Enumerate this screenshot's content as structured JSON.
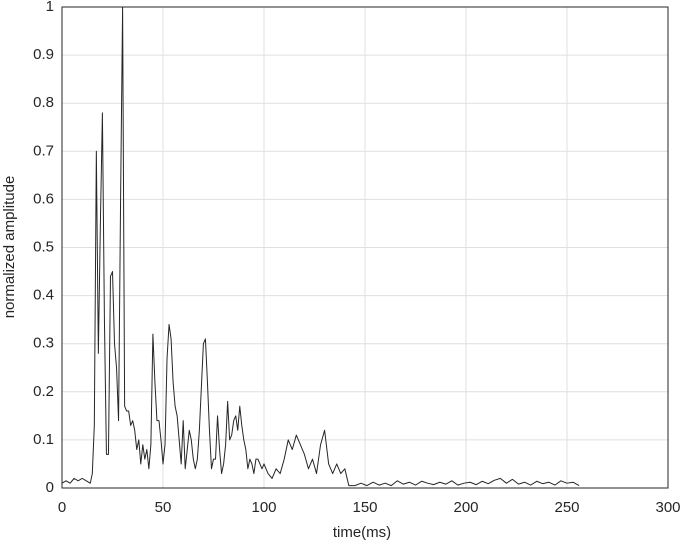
{
  "chart_data": {
    "type": "line",
    "xlabel": "time(ms)",
    "ylabel": "normalized amplitude",
    "x": [
      0,
      2,
      4,
      6,
      8,
      10,
      12,
      14,
      15,
      16,
      17,
      18,
      19,
      20,
      21,
      22,
      23,
      24,
      25,
      26,
      27,
      28,
      29,
      30,
      31,
      32,
      33,
      34,
      35,
      36,
      37,
      38,
      39,
      40,
      41,
      42,
      43,
      44,
      45,
      46,
      47,
      48,
      49,
      50,
      51,
      52,
      53,
      54,
      55,
      56,
      57,
      58,
      59,
      60,
      61,
      62,
      63,
      64,
      65,
      66,
      67,
      68,
      69,
      70,
      71,
      72,
      73,
      74,
      75,
      76,
      77,
      78,
      79,
      80,
      81,
      82,
      83,
      84,
      85,
      86,
      87,
      88,
      89,
      90,
      91,
      92,
      93,
      94,
      95,
      96,
      97,
      98,
      99,
      100,
      102,
      104,
      106,
      108,
      110,
      112,
      114,
      116,
      118,
      120,
      122,
      124,
      126,
      128,
      130,
      132,
      134,
      136,
      138,
      140,
      142,
      145,
      148,
      151,
      154,
      157,
      160,
      163,
      166,
      169,
      172,
      175,
      178,
      181,
      184,
      187,
      190,
      193,
      196,
      199,
      202,
      205,
      208,
      211,
      214,
      217,
      220,
      223,
      226,
      229,
      232,
      235,
      238,
      241,
      244,
      247,
      250,
      253,
      256
    ],
    "values": [
      0.01,
      0.015,
      0.01,
      0.02,
      0.015,
      0.02,
      0.015,
      0.01,
      0.03,
      0.13,
      0.7,
      0.28,
      0.55,
      0.78,
      0.35,
      0.07,
      0.07,
      0.44,
      0.45,
      0.3,
      0.25,
      0.14,
      0.6,
      1.0,
      0.17,
      0.16,
      0.16,
      0.13,
      0.14,
      0.12,
      0.08,
      0.1,
      0.05,
      0.09,
      0.06,
      0.08,
      0.04,
      0.09,
      0.32,
      0.22,
      0.14,
      0.14,
      0.1,
      0.05,
      0.09,
      0.27,
      0.34,
      0.31,
      0.22,
      0.17,
      0.15,
      0.1,
      0.05,
      0.14,
      0.04,
      0.08,
      0.12,
      0.1,
      0.06,
      0.04,
      0.06,
      0.12,
      0.21,
      0.3,
      0.31,
      0.22,
      0.12,
      0.04,
      0.06,
      0.06,
      0.15,
      0.08,
      0.03,
      0.05,
      0.09,
      0.18,
      0.1,
      0.11,
      0.14,
      0.15,
      0.12,
      0.17,
      0.13,
      0.1,
      0.08,
      0.04,
      0.06,
      0.05,
      0.03,
      0.06,
      0.06,
      0.05,
      0.04,
      0.05,
      0.03,
      0.02,
      0.04,
      0.03,
      0.06,
      0.1,
      0.08,
      0.11,
      0.09,
      0.07,
      0.04,
      0.06,
      0.03,
      0.09,
      0.12,
      0.05,
      0.03,
      0.05,
      0.03,
      0.04,
      0.005,
      0.005,
      0.01,
      0.005,
      0.012,
      0.006,
      0.01,
      0.005,
      0.015,
      0.008,
      0.012,
      0.006,
      0.014,
      0.01,
      0.007,
      0.012,
      0.008,
      0.015,
      0.006,
      0.01,
      0.012,
      0.007,
      0.014,
      0.009,
      0.016,
      0.02,
      0.01,
      0.018,
      0.008,
      0.012,
      0.006,
      0.014,
      0.009,
      0.012,
      0.006,
      0.015,
      0.01,
      0.012,
      0.005
    ],
    "color": "#262626",
    "xlim": [
      0,
      300
    ],
    "ylim": [
      0,
      1
    ],
    "xticks": [
      0,
      50,
      100,
      150,
      200,
      250,
      300
    ],
    "yticks": [
      0,
      0.1,
      0.2,
      0.3,
      0.4,
      0.5,
      0.6,
      0.7,
      0.8,
      0.9,
      1
    ],
    "grid": true
  }
}
